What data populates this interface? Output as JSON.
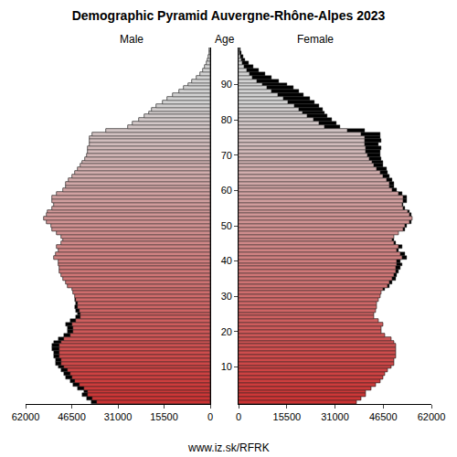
{
  "chart_data": {
    "type": "pyramid",
    "title": "Demographic Pyramid Auvergne-Rhône-Alpes 2023",
    "ylabel": "Age",
    "orientation": "horizontal",
    "annotations": [
      "www.iz.sk/RFRK"
    ],
    "ages": [
      0,
      1,
      2,
      3,
      4,
      5,
      6,
      7,
      8,
      9,
      10,
      11,
      12,
      13,
      14,
      15,
      16,
      17,
      18,
      19,
      20,
      21,
      22,
      23,
      24,
      25,
      26,
      27,
      28,
      29,
      30,
      31,
      32,
      33,
      34,
      35,
      36,
      37,
      38,
      39,
      40,
      41,
      42,
      43,
      44,
      45,
      46,
      47,
      48,
      49,
      50,
      51,
      52,
      53,
      54,
      55,
      56,
      57,
      58,
      59,
      60,
      61,
      62,
      63,
      64,
      65,
      66,
      67,
      68,
      69,
      70,
      71,
      72,
      73,
      74,
      75,
      76,
      77,
      78,
      79,
      80,
      81,
      82,
      83,
      84,
      85,
      86,
      87,
      88,
      89,
      90,
      91,
      92,
      93,
      94,
      95,
      96,
      97,
      98,
      99,
      100
    ],
    "series": [
      {
        "name": "Male",
        "values": [
          40000,
          41500,
          43000,
          42500,
          44500,
          46000,
          47000,
          48500,
          49000,
          50000,
          51000,
          52000,
          52000,
          52500,
          52500,
          53000,
          53000,
          52500,
          51000,
          49000,
          48000,
          48000,
          48500,
          47000,
          45000,
          44500,
          45000,
          45500,
          45000,
          45500,
          45500,
          46000,
          46500,
          48000,
          48500,
          49500,
          50000,
          50500,
          50500,
          51000,
          51000,
          52500,
          52000,
          51000,
          51500,
          50000,
          49500,
          50000,
          51500,
          53000,
          53500,
          55000,
          56000,
          55000,
          54500,
          53000,
          52500,
          53000,
          53000,
          51500,
          49500,
          48500,
          48500,
          47500,
          46500,
          45500,
          44500,
          43500,
          43000,
          42000,
          41500,
          41000,
          41000,
          40500,
          40500,
          40500,
          39500,
          35000,
          27500,
          26000,
          24000,
          22000,
          20500,
          19500,
          18000,
          16000,
          14500,
          12500,
          10500,
          9000,
          7500,
          6000,
          4500,
          3500,
          2500,
          1800,
          1200,
          800,
          500,
          300,
          200
        ]
      },
      {
        "name": "Female",
        "values": [
          38000,
          39500,
          41000,
          41000,
          42500,
          44000,
          45500,
          46500,
          47000,
          48000,
          49000,
          50000,
          50000,
          50500,
          50500,
          50500,
          50500,
          50000,
          49000,
          47000,
          46000,
          46000,
          46500,
          45000,
          43500,
          43500,
          44000,
          44500,
          44500,
          45000,
          45500,
          46000,
          47000,
          48500,
          49500,
          50500,
          51000,
          51500,
          52000,
          52500,
          52000,
          54000,
          53500,
          51500,
          52500,
          50500,
          50000,
          50000,
          51500,
          53500,
          54000,
          55500,
          56000,
          55500,
          55000,
          53500,
          53000,
          54000,
          54000,
          52500,
          51000,
          50000,
          50000,
          49500,
          48500,
          48000,
          47500,
          46500,
          46500,
          46000,
          45500,
          45500,
          46000,
          45000,
          46000,
          45500,
          45500,
          40500,
          32500,
          31500,
          30000,
          28500,
          27500,
          27000,
          26000,
          24500,
          23000,
          21000,
          19500,
          17500,
          15500,
          13000,
          10500,
          8500,
          6500,
          4800,
          3300,
          2200,
          1400,
          900,
          600
        ]
      }
    ],
    "xlim": [
      0,
      62000
    ],
    "xticks": [
      0,
      15500,
      31000,
      46500,
      62000
    ],
    "ylim": [
      -0.5,
      100.5
    ],
    "yticks": [
      10,
      20,
      30,
      40,
      50,
      60,
      70,
      80,
      90
    ],
    "grid": false
  }
}
